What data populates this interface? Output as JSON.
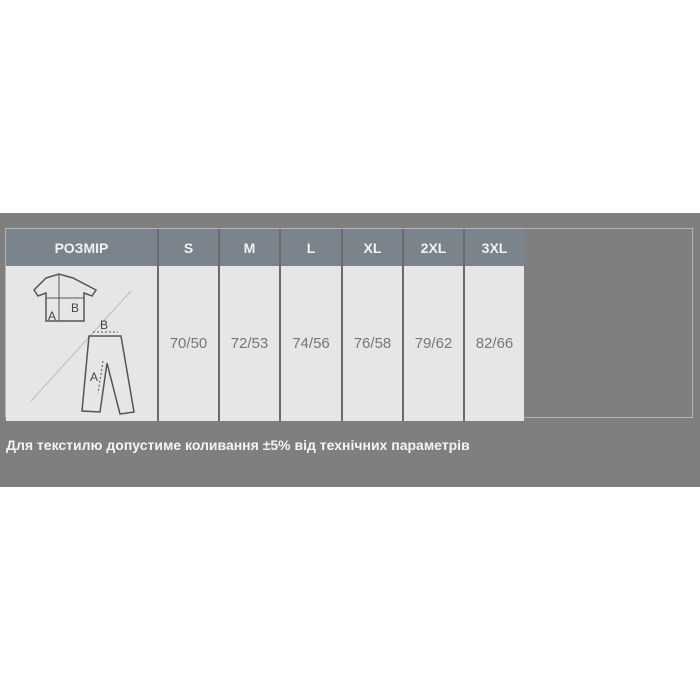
{
  "table": {
    "header_label": "РОЗМІР",
    "sizes": [
      "S",
      "M",
      "L",
      "XL",
      "2XL",
      "3XL"
    ],
    "values": [
      "70/50",
      "72/53",
      "74/56",
      "76/58",
      "79/62",
      "82/66"
    ],
    "diagram_labels": {
      "shirt_a": "A",
      "shirt_b": "B",
      "pants_a": "A",
      "pants_b": "B"
    }
  },
  "note": "Для текстилю допустиме коливання ±5% від технічних параметрів"
}
